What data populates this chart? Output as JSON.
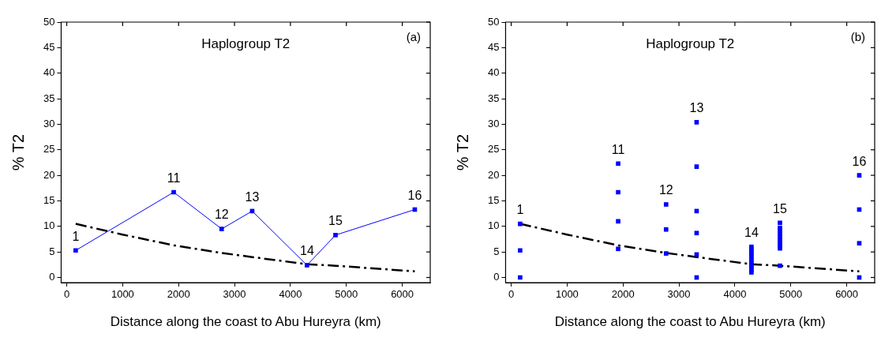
{
  "chart_data": [
    {
      "type": "line",
      "title": "Haplogroup T2",
      "xlabel": "Distance along the coast to Abu Hureyra (km)",
      "ylabel": "% T2",
      "xlim": [
        -100,
        6500
      ],
      "xticks": [
        0,
        1000,
        2000,
        3000,
        4000,
        5000,
        6000
      ],
      "ylim": [
        -1,
        50
      ],
      "yticks": [
        0,
        5,
        10,
        15,
        20,
        25,
        30,
        35,
        40,
        45,
        50
      ],
      "grid": false,
      "legend": false,
      "series": [
        {
          "color": "#0000ff",
          "marker": "square",
          "line_style": "solid",
          "x": [
            160,
            1913,
            2770,
            3316,
            4296,
            4806,
            6224
          ],
          "values": [
            5.3,
            16.7,
            9.5,
            13.0,
            2.4,
            8.3,
            13.3
          ]
        },
        {
          "type": "line",
          "color": "#000000",
          "marker": "none",
          "line_style": "dashed",
          "x": [
            160,
            1000,
            1913,
            2770,
            3316,
            4296,
            4806,
            6224
          ],
          "values": [
            10.5,
            8.4,
            6.3,
            4.8,
            4.0,
            2.6,
            2.3,
            1.2
          ]
        }
      ],
      "annotations": [
        "(a)",
        {
          "text": "1",
          "x": 160,
          "y": 5.3
        },
        {
          "text": "11",
          "x": 1913,
          "y": 16.7
        },
        {
          "text": "12",
          "x": 2770,
          "y": 9.5
        },
        {
          "text": "13",
          "x": 3316,
          "y": 13.0
        },
        {
          "text": "14",
          "x": 4296,
          "y": 2.4
        },
        {
          "text": "15",
          "x": 4806,
          "y": 8.3
        },
        {
          "text": "16",
          "x": 6224,
          "y": 13.3
        }
      ]
    },
    {
      "type": "scatter",
      "title": "Haplogroup T2",
      "xlabel": "Distance along the coast to Abu Hureyra (km)",
      "ylabel": "% T2",
      "xlim": [
        -100,
        6500
      ],
      "xticks": [
        0,
        1000,
        2000,
        3000,
        4000,
        5000,
        6000
      ],
      "ylim": [
        -1,
        50
      ],
      "yticks": [
        0,
        5,
        10,
        15,
        20,
        25,
        30,
        35,
        40,
        45,
        50
      ],
      "grid": false,
      "legend": false,
      "series": [
        {
          "color": "#0000ff",
          "marker": "square",
          "x": [
            160,
            160,
            160,
            1913,
            1913,
            1913,
            1913,
            2770,
            2770,
            2770,
            3316,
            3316,
            3316,
            3316,
            3316,
            3316,
            4296,
            4296,
            4296,
            4296,
            4296,
            4296,
            4296,
            4296,
            4296,
            4296,
            4296,
            4806,
            4806,
            4806,
            4806,
            4806,
            4806,
            4806,
            4806,
            4806,
            4806,
            6224,
            6224,
            6224,
            6224
          ],
          "values": [
            10.5,
            5.3,
            0,
            22.3,
            16.7,
            11.0,
            5.6,
            14.3,
            9.4,
            4.7,
            30.4,
            21.7,
            13.0,
            8.7,
            4.5,
            0,
            6.0,
            5.5,
            5.0,
            4.5,
            4.0,
            3.5,
            3.0,
            2.5,
            2.0,
            1.5,
            1.0,
            10.7,
            9.7,
            9.2,
            8.6,
            8.0,
            7.4,
            6.8,
            6.2,
            5.7,
            2.3,
            20.0,
            13.3,
            6.7,
            0
          ]
        },
        {
          "type": "line",
          "color": "#000000",
          "marker": "none",
          "line_style": "dashed",
          "x": [
            160,
            1000,
            1913,
            2770,
            3316,
            4296,
            4806,
            6224
          ],
          "values": [
            10.5,
            8.4,
            6.3,
            4.8,
            4.0,
            2.6,
            2.3,
            1.2
          ]
        }
      ],
      "annotations": [
        "(b)",
        {
          "text": "1",
          "x": 160,
          "y": 10.5
        },
        {
          "text": "11",
          "x": 1913,
          "y": 22.3
        },
        {
          "text": "12",
          "x": 2770,
          "y": 14.3
        },
        {
          "text": "13",
          "x": 3316,
          "y": 30.4
        },
        {
          "text": "14",
          "x": 4296,
          "y": 6.0
        },
        {
          "text": "15",
          "x": 4806,
          "y": 10.7
        },
        {
          "text": "16",
          "x": 6224,
          "y": 20.0
        }
      ]
    }
  ]
}
